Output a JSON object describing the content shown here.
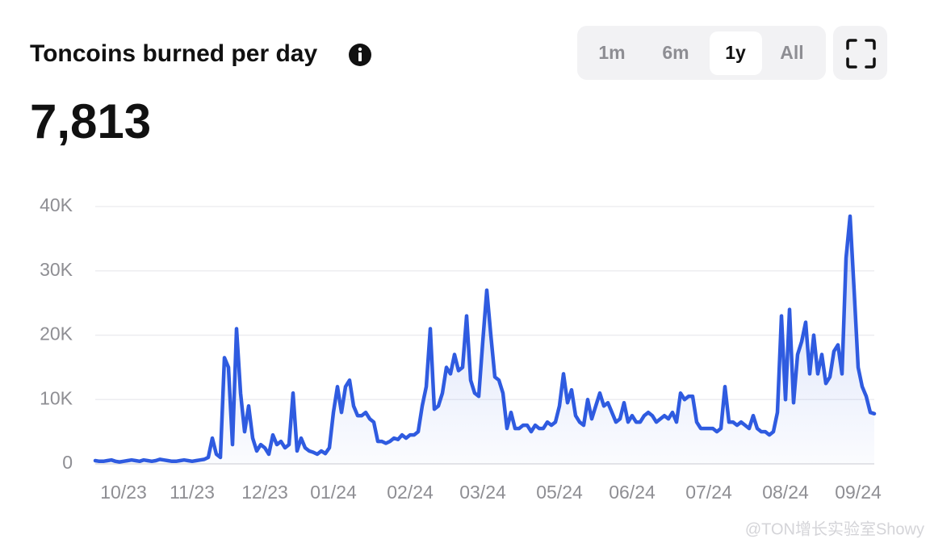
{
  "chart_data": {
    "type": "line",
    "title": "Toncoins burned per day",
    "current_value": "7,813",
    "categories": [
      null,
      null,
      null,
      null,
      null,
      null,
      null,
      "10/23",
      null,
      null,
      null,
      null,
      null,
      null,
      null,
      null,
      null,
      null,
      null,
      null,
      null,
      null,
      null,
      null,
      "11/23",
      null,
      null,
      null,
      null,
      null,
      null,
      null,
      null,
      null,
      null,
      null,
      null,
      null,
      null,
      null,
      null,
      null,
      "12/23",
      null,
      null,
      null,
      null,
      null,
      null,
      null,
      null,
      null,
      null,
      null,
      null,
      null,
      null,
      null,
      null,
      "01/24",
      null,
      null,
      null,
      null,
      null,
      null,
      null,
      null,
      null,
      null,
      null,
      null,
      null,
      null,
      null,
      null,
      null,
      null,
      "02/24",
      null,
      null,
      null,
      null,
      null,
      null,
      null,
      null,
      null,
      null,
      null,
      null,
      null,
      null,
      null,
      null,
      null,
      "03/24",
      null,
      null,
      null,
      null,
      null,
      null,
      null,
      null,
      null,
      null,
      null,
      null,
      null,
      null,
      null,
      null,
      null,
      null,
      "05/24",
      null,
      null,
      null,
      null,
      null,
      null,
      null,
      null,
      null,
      null,
      null,
      null,
      null,
      null,
      null,
      null,
      null,
      "06/24",
      null,
      null,
      null,
      null,
      null,
      null,
      null,
      null,
      null,
      null,
      null,
      null,
      null,
      null,
      null,
      null,
      null,
      null,
      "07/24",
      null,
      null,
      null,
      null,
      null,
      null,
      null,
      null,
      null,
      null,
      null,
      null,
      null,
      null,
      null,
      null,
      null,
      null,
      "08/24",
      null,
      null,
      null,
      null,
      null,
      null,
      null,
      null,
      null,
      null,
      null,
      null,
      null,
      null,
      null,
      null,
      null,
      "09/24",
      null,
      null,
      null,
      null
    ],
    "values": [
      500,
      400,
      400,
      500,
      600,
      400,
      300,
      400,
      500,
      600,
      500,
      400,
      600,
      500,
      400,
      500,
      700,
      600,
      500,
      400,
      400,
      500,
      600,
      500,
      400,
      500,
      600,
      700,
      1000,
      4000,
      1500,
      1000,
      16500,
      15000,
      3000,
      21000,
      11000,
      5000,
      9000,
      4000,
      2000,
      3000,
      2500,
      1500,
      4500,
      3000,
      3500,
      2500,
      3000,
      11000,
      2000,
      4000,
      2500,
      2000,
      1800,
      1500,
      2000,
      1600,
      2500,
      8000,
      12000,
      8000,
      12000,
      13000,
      9000,
      7500,
      7500,
      8000,
      7000,
      6500,
      3500,
      3500,
      3200,
      3500,
      4000,
      3800,
      4500,
      4000,
      4500,
      4500,
      5000,
      9000,
      12000,
      21000,
      8500,
      9000,
      11000,
      15000,
      14000,
      17000,
      14500,
      15000,
      23000,
      13000,
      11000,
      10500,
      19000,
      27000,
      20000,
      13500,
      13000,
      11000,
      5500,
      8000,
      5500,
      5500,
      6000,
      6000,
      5000,
      6000,
      5500,
      5500,
      6500,
      6000,
      6500,
      9000,
      14000,
      9500,
      11500,
      7500,
      6500,
      6000,
      10000,
      7000,
      9000,
      11000,
      9000,
      9500,
      8000,
      6500,
      7000,
      9500,
      6500,
      7500,
      6500,
      6500,
      7500,
      8000,
      7500,
      6500,
      7000,
      7500,
      7000,
      8000,
      6500,
      11000,
      10000,
      10500,
      10500,
      6500,
      5500,
      5500,
      5500,
      5500,
      5000,
      5500,
      12000,
      6500,
      6500,
      6000,
      6500,
      6000,
      5500,
      7500,
      5500,
      5000,
      5000,
      4500,
      5000,
      8000,
      23000,
      10000,
      24000,
      9500,
      17000,
      19000,
      22000,
      14000,
      20000,
      14000,
      17000,
      12500,
      13500,
      17500,
      18500,
      14000,
      32000,
      38500,
      27000,
      15000,
      12000,
      10500,
      8000,
      7800
    ],
    "color": "#2f5be0",
    "ylim": [
      0,
      40000
    ],
    "yticks": [
      0,
      {
        "value": 10000,
        "label": "10K"
      },
      {
        "value": 20000,
        "label": "20K"
      },
      {
        "value": 30000,
        "label": "30K"
      },
      {
        "value": 40000,
        "label": "40K"
      }
    ],
    "grid": true
  },
  "controls": {
    "ranges": [
      "1m",
      "6m",
      "1y",
      "All"
    ],
    "selected_index": 2
  },
  "watermark": "@TON增长实验室Showy"
}
